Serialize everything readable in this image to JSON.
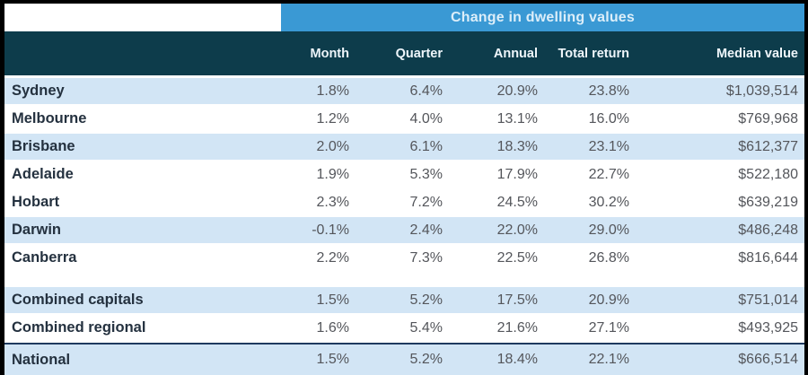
{
  "chart_data": {
    "type": "table",
    "title": "Change in dwelling values",
    "columns": [
      "Month",
      "Quarter",
      "Annual",
      "Total return",
      "Median value"
    ],
    "rows": [
      {
        "label": "Sydney",
        "values": [
          "1.8%",
          "6.4%",
          "20.9%",
          "23.8%",
          "$1,039,514"
        ],
        "shaded": true
      },
      {
        "label": "Melbourne",
        "values": [
          "1.2%",
          "4.0%",
          "13.1%",
          "16.0%",
          "$769,968"
        ],
        "shaded": false
      },
      {
        "label": "Brisbane",
        "values": [
          "2.0%",
          "6.1%",
          "18.3%",
          "23.1%",
          "$612,377"
        ],
        "shaded": true
      },
      {
        "label": "Adelaide",
        "values": [
          "1.9%",
          "5.3%",
          "17.9%",
          "22.7%",
          "$522,180"
        ],
        "shaded": false
      },
      {
        "label": "Hobart",
        "values": [
          "2.3%",
          "7.2%",
          "24.5%",
          "30.2%",
          "$639,219"
        ],
        "shaded": false
      },
      {
        "label": "Darwin",
        "values": [
          "-0.1%",
          "2.4%",
          "22.0%",
          "29.0%",
          "$486,248"
        ],
        "shaded": true
      },
      {
        "label": "Canberra",
        "values": [
          "2.2%",
          "7.3%",
          "22.5%",
          "26.8%",
          "$816,644"
        ],
        "shaded": false
      }
    ],
    "summary_rows": [
      {
        "label": "Combined capitals",
        "values": [
          "1.5%",
          "5.2%",
          "17.5%",
          "20.9%",
          "$751,014"
        ],
        "shaded": true
      },
      {
        "label": "Combined regional",
        "values": [
          "1.6%",
          "5.4%",
          "21.6%",
          "27.1%",
          "$493,925"
        ],
        "shaded": false
      }
    ],
    "national_row": {
      "label": "National",
      "values": [
        "1.5%",
        "5.2%",
        "18.4%",
        "22.1%",
        "$666,514"
      ],
      "shaded": true
    },
    "layout_hints": {
      "legend": "none",
      "grid": "row-banding"
    }
  },
  "colors": {
    "band_blue": "#3a99d4",
    "header_teal": "#0d3c4b",
    "row_shaded_blue": "#d2e5f5",
    "row_plain": "#ffffff",
    "label_text": "#24313f",
    "value_text": "#54565b",
    "title_text": "#dceef9",
    "national_divider_navy": "#1f3a5f",
    "frame_black": "#000000"
  }
}
